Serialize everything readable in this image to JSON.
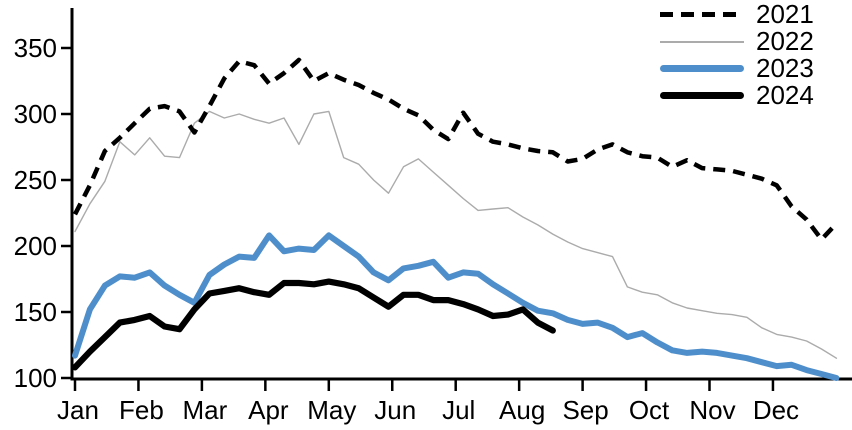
{
  "chart_data": {
    "type": "line",
    "title": "",
    "x_axis": {
      "tick_labels": [
        "Jan",
        "Feb",
        "Mar",
        "Apr",
        "May",
        "Jun",
        "Jul",
        "Aug",
        "Sep",
        "Oct",
        "Nov",
        "Dec"
      ],
      "unit": "weekly points across one year"
    },
    "y_axis": {
      "ticks": [
        100,
        150,
        200,
        250,
        300,
        350
      ],
      "min": 100,
      "max": 350
    },
    "grid": "off",
    "legend_position": "top-right",
    "series": [
      {
        "name": "2021",
        "style": "dashed",
        "color": "#000000",
        "line_width": 4.5,
        "values": [
          224,
          246,
          272,
          282,
          293,
          304,
          306,
          302,
          286,
          306,
          327,
          340,
          337,
          323,
          331,
          341,
          325,
          331,
          326,
          322,
          316,
          311,
          304,
          299,
          288,
          281,
          301,
          285,
          279,
          277,
          274,
          272,
          271,
          264,
          266,
          273,
          277,
          271,
          268,
          267,
          260,
          265,
          259,
          258,
          257,
          254,
          251,
          246,
          230,
          220,
          205,
          217
        ]
      },
      {
        "name": "2022",
        "style": "solid",
        "color": "#ABABAB",
        "line_width": 1.4,
        "values": [
          211,
          232,
          249,
          279,
          269,
          282,
          268,
          267,
          293,
          302,
          297,
          300,
          296,
          293,
          297,
          277,
          300,
          302,
          267,
          262,
          250,
          240,
          260,
          266,
          256,
          246,
          236,
          227,
          228,
          229,
          222,
          216,
          209,
          203,
          198,
          195,
          192,
          169,
          165,
          163,
          157,
          153,
          151,
          149,
          148,
          146,
          138,
          133,
          131,
          128,
          122,
          115
        ]
      },
      {
        "name": "2023",
        "style": "solid",
        "color": "#4E8FCB",
        "line_width": 6,
        "values": [
          117,
          152,
          170,
          177,
          176,
          180,
          170,
          163,
          157,
          178,
          186,
          192,
          191,
          208,
          196,
          198,
          197,
          208,
          200,
          192,
          180,
          174,
          183,
          185,
          188,
          176,
          180,
          179,
          171,
          164,
          157,
          151,
          149,
          144,
          141,
          142,
          138,
          131,
          134,
          127,
          121,
          119,
          120,
          119,
          117,
          115,
          112,
          109,
          110,
          106,
          103,
          100
        ]
      },
      {
        "name": "2024",
        "style": "solid",
        "color": "#000000",
        "line_width": 6.2,
        "values": [
          108,
          120,
          131,
          142,
          144,
          147,
          139,
          137,
          152,
          164,
          166,
          168,
          165,
          163,
          172,
          172,
          171,
          173,
          171,
          168,
          161,
          154,
          163,
          163,
          159,
          159,
          156,
          152,
          147,
          148,
          152,
          142,
          136
        ]
      }
    ]
  }
}
